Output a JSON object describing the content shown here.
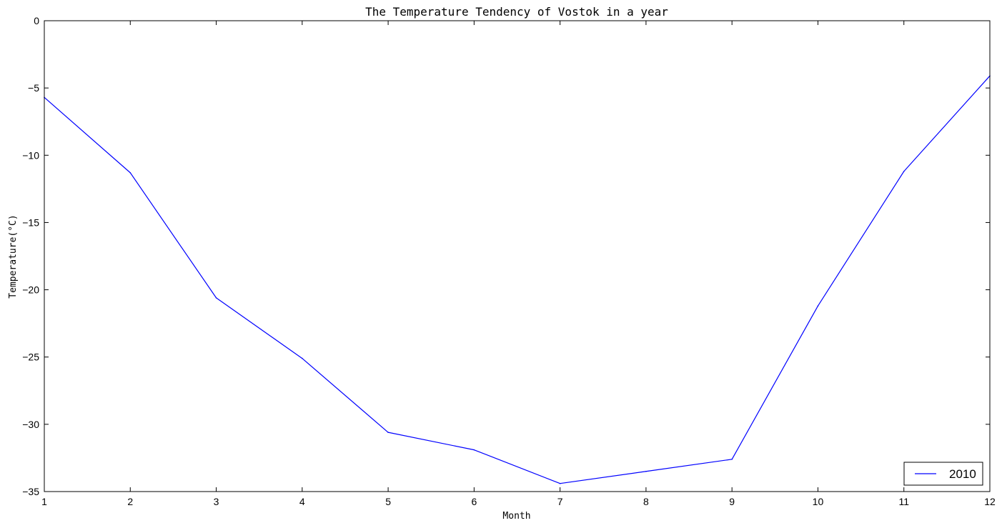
{
  "chart_data": {
    "type": "line",
    "title": "The Temperature Tendency of Vostok in a year",
    "xlabel": "Month",
    "ylabel": "Temperature(°C)",
    "x": [
      1,
      2,
      3,
      4,
      5,
      6,
      7,
      8,
      9,
      10,
      11,
      12
    ],
    "xlim": [
      1,
      12
    ],
    "ylim": [
      -35,
      0
    ],
    "xticks": [
      "1",
      "2",
      "3",
      "4",
      "5",
      "6",
      "7",
      "8",
      "9",
      "10",
      "11",
      "12"
    ],
    "yticks": [
      "0",
      "−5",
      "−10",
      "−15",
      "−20",
      "−25",
      "−30",
      "−35"
    ],
    "ytick_values": [
      0,
      -5,
      -10,
      -15,
      -20,
      -25,
      -30,
      -35
    ],
    "grid": false,
    "legend_position": "bottom-right",
    "series": [
      {
        "name": "2010",
        "color": "#0000ff",
        "values": [
          -5.7,
          -11.3,
          -20.6,
          -25.1,
          -30.6,
          -31.9,
          -34.4,
          -33.5,
          -32.6,
          -21.2,
          -11.2,
          -4.1
        ]
      }
    ]
  }
}
